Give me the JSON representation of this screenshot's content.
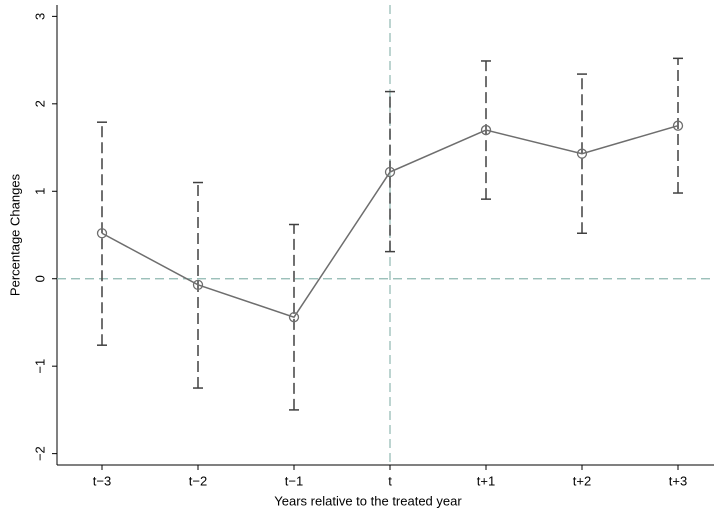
{
  "chart_data": {
    "type": "errorbar",
    "x_label": "Years relative to the treated year",
    "y_label": "Percentage Changes",
    "categories": [
      "t−3",
      "t−2",
      "t−1",
      "t",
      "t+1",
      "t+2",
      "t+3"
    ],
    "series": [
      {
        "color": "#6e6e6e",
        "bar_color": "#404040",
        "values": [
          0.52,
          -0.07,
          -0.44,
          1.22,
          1.7,
          1.43,
          1.75
        ],
        "lower": [
          -0.76,
          -1.25,
          -1.5,
          0.31,
          0.91,
          0.52,
          0.98
        ],
        "upper": [
          1.79,
          1.1,
          0.62,
          2.14,
          2.49,
          2.34,
          2.52
        ]
      }
    ],
    "ylim": [
      -2.13,
      3.13
    ],
    "yticks": [
      {
        "value": -2,
        "label": "−2"
      },
      {
        "value": -1,
        "label": "−1"
      },
      0,
      1,
      2,
      3
    ],
    "hline": 0,
    "vline": "t",
    "ref_color": "#8fb8b0"
  }
}
